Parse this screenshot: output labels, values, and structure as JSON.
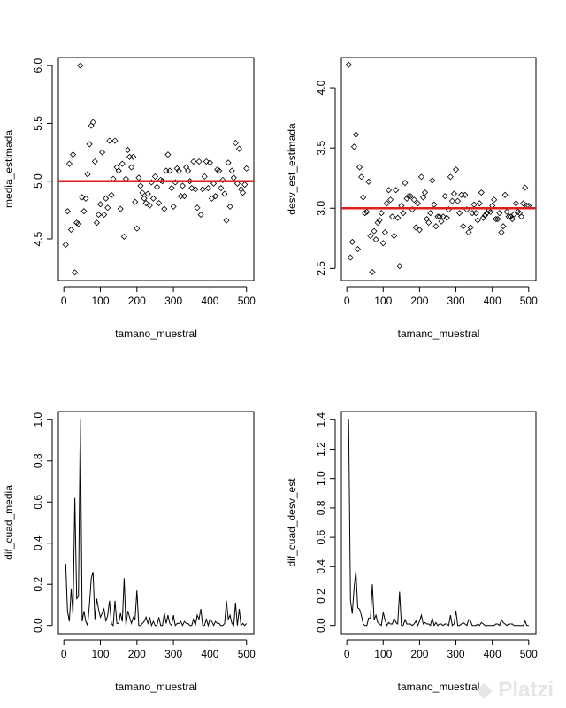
{
  "watermark": "Platzi",
  "colors": {
    "reference_line": "#e01e1e",
    "marks": "#000000"
  },
  "chart_data": [
    {
      "type": "scatter",
      "title": "",
      "xlabel": "tamano_muestral",
      "ylabel": "media_estimada",
      "x": {
        "from": 5,
        "to": 500,
        "by": 5
      },
      "xlim": [
        -15,
        520
      ],
      "ylim": [
        4.14,
        6.07
      ],
      "xticks": [
        0,
        100,
        200,
        300,
        400,
        500
      ],
      "yticks": [
        4.5,
        5.0,
        5.5,
        6.0
      ],
      "ytick_labels": [
        "4.5",
        "5.0",
        "5.5",
        "6.0"
      ],
      "hline": 5.0,
      "y": [
        4.45,
        4.74,
        5.15,
        4.58,
        5.23,
        4.21,
        4.64,
        4.63,
        6.0,
        4.86,
        4.74,
        4.85,
        5.06,
        5.32,
        5.48,
        5.51,
        5.17,
        4.64,
        4.71,
        4.8,
        5.25,
        4.71,
        4.85,
        4.77,
        5.35,
        4.88,
        5.02,
        5.35,
        5.12,
        5.09,
        4.76,
        5.15,
        4.52,
        5.02,
        5.27,
        5.21,
        5.12,
        5.21,
        4.82,
        4.59,
        5.03,
        4.96,
        4.9,
        4.85,
        4.81,
        4.89,
        4.79,
        4.99,
        4.85,
        5.04,
        4.95,
        4.81,
        5.01,
        5.0,
        4.76,
        5.09,
        5.23,
        5.09,
        4.94,
        4.78,
        4.99,
        5.11,
        5.09,
        4.87,
        4.96,
        4.87,
        5.12,
        5.09,
        5.0,
        4.94,
        5.17,
        4.93,
        4.77,
        5.17,
        4.71,
        4.93,
        5.04,
        5.17,
        4.94,
        5.16,
        4.85,
        4.98,
        4.87,
        5.1,
        5.09,
        4.94,
        5.01,
        4.89,
        4.66,
        5.16,
        4.78,
        5.09,
        5.03,
        5.33,
        4.98,
        5.28,
        4.93,
        4.9,
        4.97,
        5.11
      ]
    },
    {
      "type": "scatter",
      "title": "",
      "xlabel": "tamano_muestral",
      "ylabel": "desv_est_estimada",
      "x": {
        "from": 5,
        "to": 500,
        "by": 5
      },
      "xlim": [
        -15,
        520
      ],
      "ylim": [
        2.4,
        4.25
      ],
      "xticks": [
        0,
        100,
        200,
        300,
        400,
        500
      ],
      "yticks": [
        2.5,
        3.0,
        3.5,
        4.0
      ],
      "ytick_labels": [
        "2.5",
        "3.0",
        "3.5",
        "4.0"
      ],
      "hline": 3.0,
      "y": [
        4.19,
        2.59,
        2.72,
        3.51,
        3.61,
        2.66,
        3.34,
        3.26,
        3.09,
        2.96,
        2.97,
        3.22,
        2.77,
        2.47,
        2.81,
        2.74,
        2.88,
        2.9,
        2.96,
        2.71,
        2.8,
        3.04,
        3.15,
        3.07,
        2.93,
        2.77,
        3.15,
        2.92,
        2.52,
        3.02,
        2.96,
        3.21,
        3.08,
        3.1,
        3.1,
        2.99,
        3.07,
        2.84,
        3.04,
        2.82,
        3.26,
        3.09,
        3.13,
        2.91,
        2.88,
        2.96,
        3.23,
        3.03,
        2.85,
        2.93,
        2.93,
        2.89,
        2.93,
        3.1,
        2.92,
        2.99,
        3.26,
        3.06,
        3.12,
        3.32,
        3.06,
        2.96,
        3.11,
        2.85,
        3.11,
        2.99,
        2.8,
        2.84,
        2.96,
        3.03,
        2.96,
        2.9,
        3.04,
        3.13,
        2.92,
        2.94,
        2.96,
        2.98,
        2.97,
        3.02,
        3.07,
        2.91,
        2.91,
        2.96,
        2.8,
        2.85,
        3.11,
        2.97,
        2.93,
        2.93,
        2.91,
        2.95,
        3.04,
        2.97,
        2.96,
        2.93,
        3.04,
        3.17,
        3.02,
        3.02
      ]
    },
    {
      "type": "line",
      "title": "",
      "xlabel": "tamano_muestral",
      "ylabel": "dif_cuad_media",
      "x": {
        "from": 5,
        "to": 500,
        "by": 5
      },
      "xlim": [
        -15,
        520
      ],
      "ylim": [
        -0.04,
        1.04
      ],
      "xticks": [
        0,
        100,
        200,
        300,
        400,
        500
      ],
      "yticks": [
        0.0,
        0.2,
        0.4,
        0.6,
        0.8,
        1.0
      ],
      "ytick_labels": [
        "0.0",
        "0.2",
        "0.4",
        "0.6",
        "0.8",
        "1.0"
      ],
      "y": [
        0.3,
        0.07,
        0.02,
        0.18,
        0.05,
        0.62,
        0.13,
        0.14,
        1.0,
        0.02,
        0.07,
        0.02,
        0.0,
        0.1,
        0.23,
        0.26,
        0.03,
        0.13,
        0.08,
        0.04,
        0.06,
        0.08,
        0.02,
        0.05,
        0.12,
        0.01,
        0.0,
        0.12,
        0.01,
        0.01,
        0.06,
        0.02,
        0.23,
        0.0,
        0.07,
        0.04,
        0.01,
        0.04,
        0.03,
        0.17,
        0.0,
        0.0,
        0.01,
        0.02,
        0.04,
        0.01,
        0.04,
        0.0,
        0.02,
        0.0,
        0.0,
        0.04,
        0.0,
        0.0,
        0.06,
        0.01,
        0.05,
        0.01,
        0.0,
        0.05,
        0.0,
        0.01,
        0.01,
        0.02,
        0.0,
        0.02,
        0.01,
        0.01,
        0.0,
        0.0,
        0.03,
        0.0,
        0.05,
        0.03,
        0.08,
        0.0,
        0.0,
        0.03,
        0.0,
        0.03,
        0.02,
        0.0,
        0.02,
        0.01,
        0.01,
        0.0,
        0.0,
        0.01,
        0.12,
        0.03,
        0.05,
        0.01,
        0.0,
        0.11,
        0.0,
        0.08,
        0.0,
        0.01,
        0.0,
        0.01
      ]
    },
    {
      "type": "line",
      "title": "",
      "xlabel": "tamano_muestral",
      "ylabel": "dif_cuad_desv_est",
      "x": {
        "from": 5,
        "to": 500,
        "by": 5
      },
      "xlim": [
        -15,
        520
      ],
      "ylim": [
        -0.056,
        1.456
      ],
      "xticks": [
        0,
        100,
        200,
        300,
        400,
        500
      ],
      "yticks": [
        0.0,
        0.2,
        0.4,
        0.6,
        0.8,
        1.0,
        1.2,
        1.4
      ],
      "ytick_labels": [
        "0.0",
        "0.2",
        "0.4",
        "0.6",
        "0.8",
        "1.0",
        "1.2",
        "1.4"
      ],
      "y": [
        1.4,
        0.17,
        0.08,
        0.26,
        0.37,
        0.12,
        0.11,
        0.07,
        0.01,
        0.0,
        0.0,
        0.05,
        0.05,
        0.28,
        0.04,
        0.07,
        0.02,
        0.01,
        0.0,
        0.09,
        0.04,
        0.0,
        0.02,
        0.01,
        0.01,
        0.05,
        0.02,
        0.01,
        0.23,
        0.0,
        0.0,
        0.04,
        0.01,
        0.01,
        0.01,
        0.0,
        0.01,
        0.03,
        0.0,
        0.03,
        0.07,
        0.01,
        0.02,
        0.01,
        0.01,
        0.0,
        0.05,
        0.0,
        0.02,
        0.0,
        0.01,
        0.01,
        0.0,
        0.01,
        0.01,
        0.0,
        0.07,
        0.0,
        0.01,
        0.1,
        0.0,
        0.0,
        0.01,
        0.02,
        0.01,
        0.0,
        0.04,
        0.03,
        0.0,
        0.0,
        0.0,
        0.01,
        0.0,
        0.02,
        0.01,
        0.0,
        0.0,
        0.0,
        0.0,
        0.0,
        0.0,
        0.01,
        0.01,
        0.0,
        0.04,
        0.02,
        0.01,
        0.0,
        0.01,
        0.01,
        0.01,
        0.0,
        0.0,
        0.0,
        0.0,
        0.0,
        0.0,
        0.03,
        0.0,
        0.0
      ]
    }
  ]
}
